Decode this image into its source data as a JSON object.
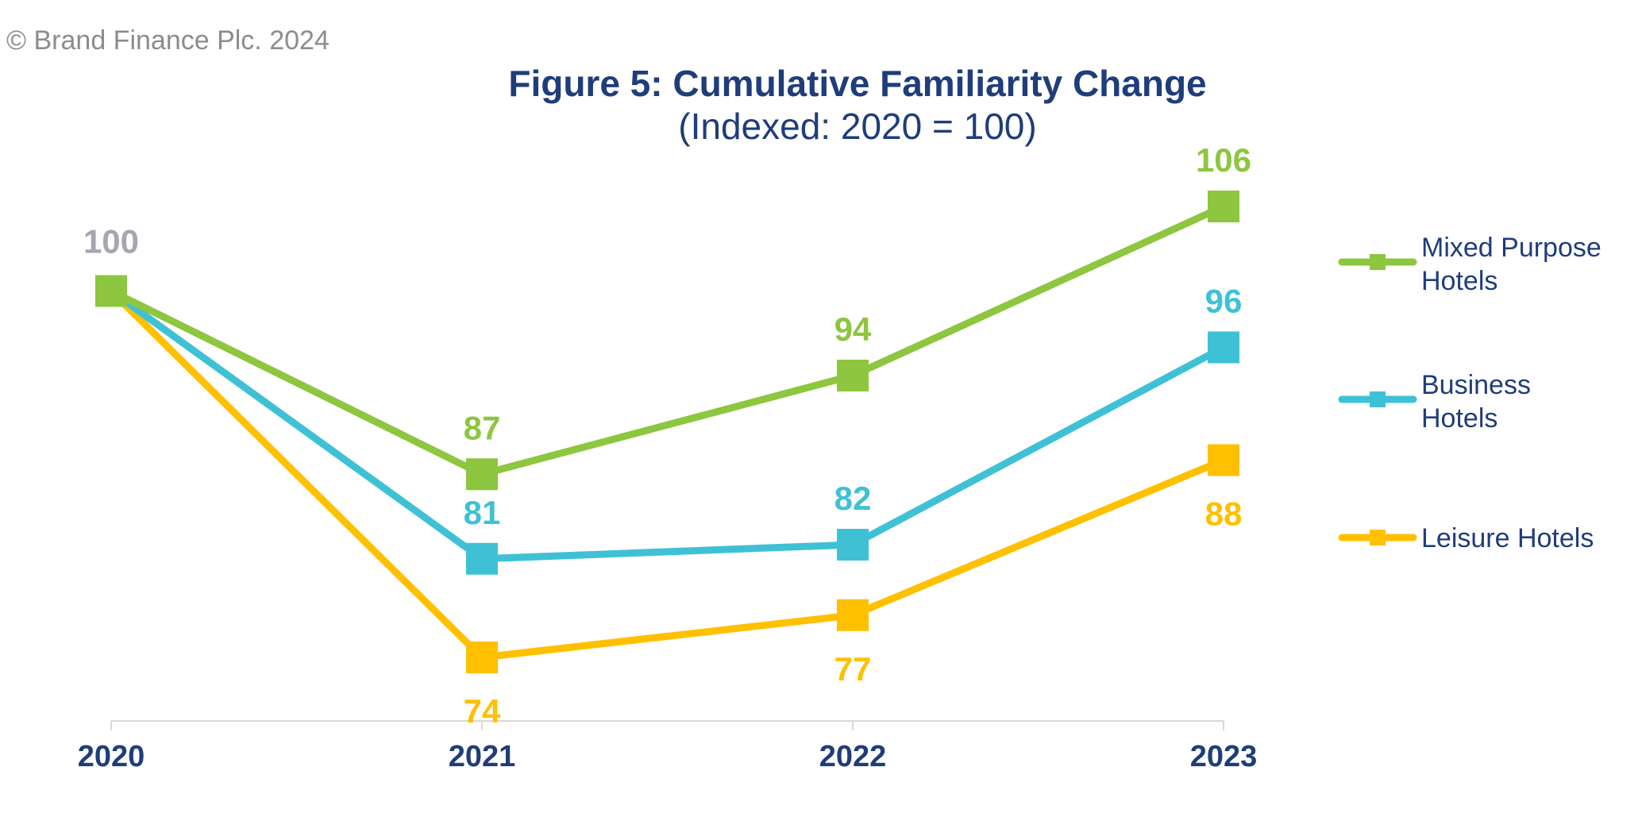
{
  "copyright": "© Brand Finance Plc. 2024",
  "chart_data": {
    "type": "line",
    "title": "Figure 5: Cumulative Familiarity Change",
    "subtitle": "(Indexed: 2020 = 100)",
    "categories": [
      "2020",
      "2021",
      "2022",
      "2023"
    ],
    "ylim": [
      70,
      110
    ],
    "grid": false,
    "legend_position": "right",
    "start_label": {
      "text": "100",
      "color": "#a6a6b0"
    },
    "series": [
      {
        "name": "Mixed Purpose Hotels",
        "legend_lines": [
          "Mixed Purpose",
          "Hotels"
        ],
        "color": "#8dc63f",
        "values": [
          100,
          87,
          94,
          106
        ],
        "labels": [
          "",
          "87",
          "94",
          "106"
        ],
        "label_side": [
          "above",
          "above",
          "above",
          "above"
        ]
      },
      {
        "name": "Business Hotels",
        "legend_lines": [
          "Business",
          "Hotels"
        ],
        "color": "#3fc1d5",
        "values": [
          100,
          81,
          82,
          96
        ],
        "labels": [
          "",
          "81",
          "82",
          "96"
        ],
        "label_side": [
          "above",
          "above",
          "above",
          "above"
        ]
      },
      {
        "name": "Leisure Hotels",
        "legend_lines": [
          "Leisure Hotels"
        ],
        "color": "#ffc000",
        "values": [
          100,
          74,
          77,
          88
        ],
        "labels": [
          "",
          "74",
          "77",
          "88"
        ],
        "label_side": [
          "below",
          "below",
          "below",
          "below"
        ]
      }
    ]
  }
}
